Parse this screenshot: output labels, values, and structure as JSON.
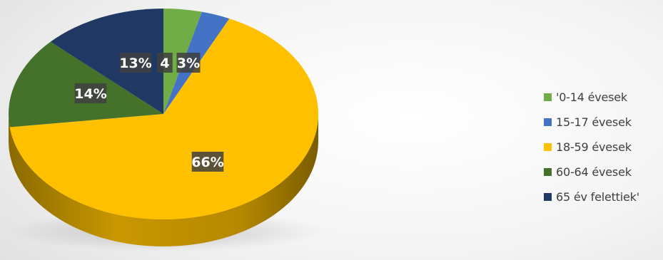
{
  "chart_data": {
    "type": "pie",
    "title": "",
    "categories": [
      "'0-14 évesek",
      "15-17 évesek",
      "18-59 évesek",
      "60-64 évesek",
      "65 év felettiek'"
    ],
    "values": [
      4,
      3,
      66,
      14,
      13
    ],
    "data_labels": [
      "4",
      "3%",
      "66%",
      "14%",
      "13%"
    ],
    "colors": [
      "#70ad47",
      "#4472c4",
      "#ffc000",
      "#44722a",
      "#203864"
    ],
    "legend_position": "right",
    "style": "3d"
  }
}
